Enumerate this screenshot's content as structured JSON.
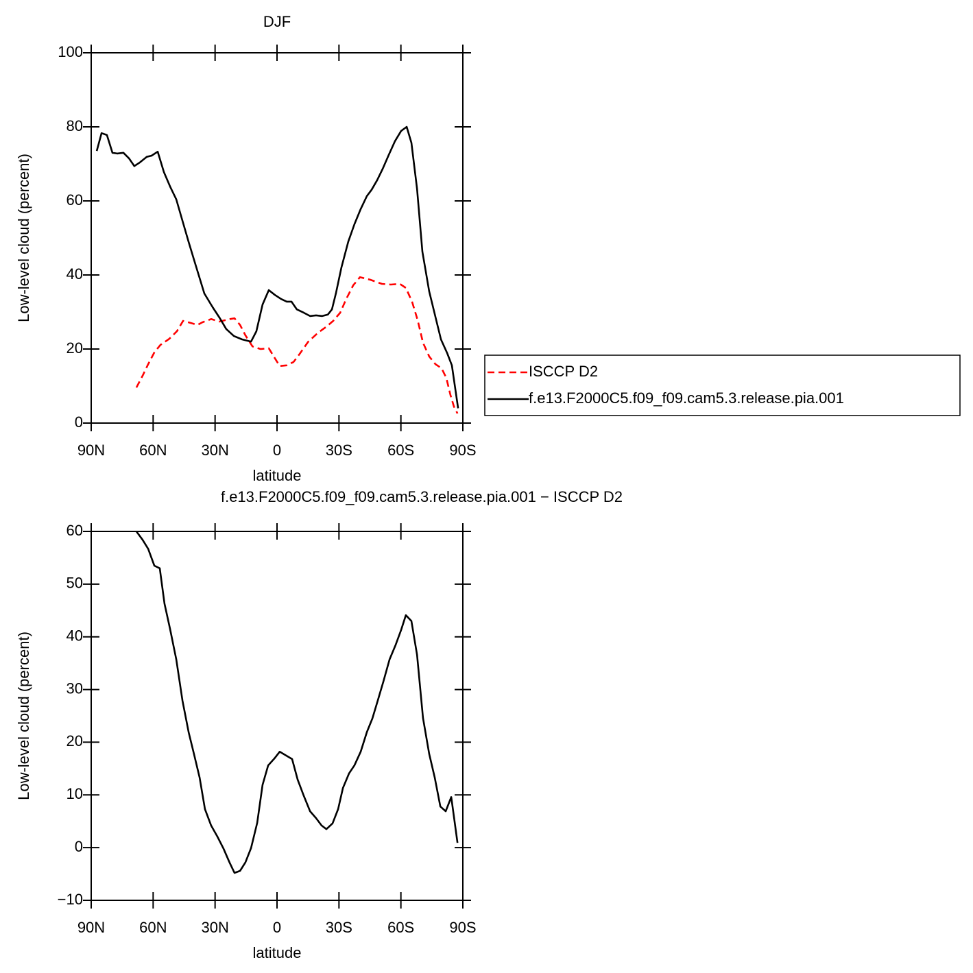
{
  "chart_data": [
    {
      "type": "line",
      "title": "DJF",
      "xlabel": "latitude",
      "ylabel": "Low-level cloud (percent)",
      "xlim": [
        90,
        -90
      ],
      "xticks": [
        {
          "value": 90,
          "label": "90N"
        },
        {
          "value": 60,
          "label": "60N"
        },
        {
          "value": 30,
          "label": "30N"
        },
        0,
        {
          "value": -30,
          "label": "30S"
        },
        {
          "value": -60,
          "label": "60S"
        },
        {
          "value": -90,
          "label": "90S"
        }
      ],
      "ylim": [
        0,
        100
      ],
      "yticks": [
        0,
        20,
        40,
        60,
        80,
        100
      ],
      "legend": "right",
      "series": [
        {
          "name": "ISCCP D2",
          "color": "#ff0000",
          "dash": true,
          "x": [
            68.1,
            65.1,
            62.4,
            59.4,
            56.5,
            52.1,
            48.5,
            45.5,
            42.8,
            38.5,
            36.2,
            31.9,
            27.9,
            23.6,
            20.6,
            17.9,
            15.3,
            11.9,
            8,
            4,
            1.7,
            -1.3,
            -4.7,
            -8,
            -11,
            -15,
            -19.9,
            -23.6,
            -27.2,
            -30.6,
            -33.5,
            -36.9,
            -40.2,
            -45.2,
            -50.8,
            -55.1,
            -59.5,
            -62.4,
            -65.4,
            -68.1,
            -70.7,
            -73.7,
            -76.7,
            -79.7,
            -82,
            -84,
            -85.7,
            -87.4
          ],
          "values": [
            9.6,
            12.8,
            15.9,
            19.1,
            21.1,
            22.8,
            24.8,
            27.6,
            27.2,
            26.5,
            27.2,
            28.1,
            27.4,
            28,
            28.3,
            26.5,
            23.7,
            20.7,
            20,
            20.2,
            18.1,
            15.4,
            15.6,
            16.5,
            18.7,
            21.9,
            24.4,
            25.9,
            27.6,
            29.8,
            33.5,
            37.2,
            39.4,
            38.7,
            37.6,
            37.4,
            37.6,
            36.5,
            32.8,
            27.8,
            21.7,
            18,
            15.9,
            14.8,
            12.2,
            7.6,
            4.4,
            2.6
          ]
        },
        {
          "name": "f.e13.F2000C5.f09_f09.cam5.3.release.pia.001",
          "color": "#000000",
          "dash": false,
          "x": [
            87.3,
            85,
            82.4,
            79.7,
            77.4,
            74.4,
            71.7,
            69.1,
            66.4,
            63.1,
            60.8,
            57.8,
            54.8,
            51.8,
            48.8,
            46.2,
            42.8,
            39.5,
            35.2,
            31.2,
            27.9,
            24.6,
            20.9,
            16.9,
            12.6,
            10,
            7,
            4,
            1,
            -2,
            -4.7,
            -7,
            -9.6,
            -13,
            -16,
            -18.9,
            -21.9,
            -24.6,
            -26.6,
            -28.6,
            -31.2,
            -34.5,
            -37.5,
            -40.5,
            -43.5,
            -45.8,
            -48.5,
            -51.2,
            -54.1,
            -57.1,
            -60.1,
            -62.8,
            -65.1,
            -67.8,
            -70.4,
            -73.7,
            -76.7,
            -79.4,
            -82.4,
            -84.7,
            -87.7
          ],
          "values": [
            73.5,
            78.3,
            77.8,
            73,
            72.8,
            73,
            71.5,
            69.4,
            70.4,
            71.9,
            72.2,
            73.3,
            67.8,
            63.9,
            60.4,
            55.4,
            48.9,
            42.8,
            35,
            31.3,
            28.5,
            25.4,
            23.5,
            22.6,
            22,
            24.8,
            32,
            35.9,
            34.6,
            33.5,
            32.8,
            32.8,
            30.7,
            29.8,
            28.9,
            29.1,
            28.9,
            29.3,
            30.7,
            35.2,
            42,
            49,
            53.7,
            57.8,
            61.3,
            63,
            65.6,
            68.7,
            72.4,
            76.1,
            78.9,
            80,
            75.7,
            63.3,
            46.3,
            35.6,
            28.7,
            22.6,
            18.9,
            15.6,
            4
          ]
        }
      ]
    },
    {
      "type": "line",
      "title": "f.e13.F2000C5.f09_f09.cam5.3.release.pia.001 − ISCCP D2",
      "xlabel": "latitude",
      "ylabel": "Low-level cloud (percent)",
      "xlim": [
        90,
        -90
      ],
      "xticks": [
        {
          "value": 90,
          "label": "90N"
        },
        {
          "value": 60,
          "label": "60N"
        },
        {
          "value": 30,
          "label": "30N"
        },
        0,
        {
          "value": -30,
          "label": "30S"
        },
        {
          "value": -60,
          "label": "60S"
        },
        {
          "value": -90,
          "label": "90S"
        }
      ],
      "ylim": [
        -10,
        60
      ],
      "yticks": [
        {
          "value": -10,
          "label": "−10"
        },
        0,
        10,
        20,
        30,
        40,
        50,
        60
      ],
      "series": [
        {
          "color": "#000000",
          "dash": false,
          "x": [
            68.1,
            65.1,
            62.4,
            59.4,
            56.8,
            54.5,
            51.8,
            48.8,
            45.8,
            42.8,
            40.2,
            37.5,
            34.9,
            31.9,
            28.9,
            25.9,
            23,
            20.6,
            17.9,
            15.3,
            12.6,
            9.6,
            7,
            4.3,
            1.3,
            -1.3,
            -4.3,
            -7.3,
            -10,
            -13,
            -16,
            -18.9,
            -21.6,
            -23.9,
            -26.9,
            -29.6,
            -31.9,
            -34.9,
            -37.5,
            -40.5,
            -43.5,
            -46.2,
            -48.8,
            -51.5,
            -54.5,
            -57.5,
            -60.1,
            -62.4,
            -65.1,
            -67.8,
            -70.7,
            -73.7,
            -76.4,
            -79.1,
            -81.7,
            -84.4,
            -87.4
          ],
          "values": [
            60,
            58.4,
            56.7,
            53.5,
            53,
            46.3,
            41.5,
            35.7,
            27.9,
            21.9,
            17.7,
            13.3,
            7.3,
            4.2,
            2.1,
            -0.2,
            -2.8,
            -4.8,
            -4.4,
            -2.8,
            -0.1,
            4.7,
            11.9,
            15.6,
            16.9,
            18.2,
            17.5,
            16.8,
            12.9,
            9.8,
            6.9,
            5.6,
            4.2,
            3.5,
            4.6,
            7.3,
            11.3,
            14.1,
            15.6,
            18.2,
            21.9,
            24.5,
            27.9,
            31.5,
            35.7,
            38.5,
            41.3,
            44.1,
            43,
            36.6,
            24.6,
            17.8,
            13.3,
            7.8,
            6.9,
            9.6,
            0.9
          ]
        }
      ]
    }
  ]
}
